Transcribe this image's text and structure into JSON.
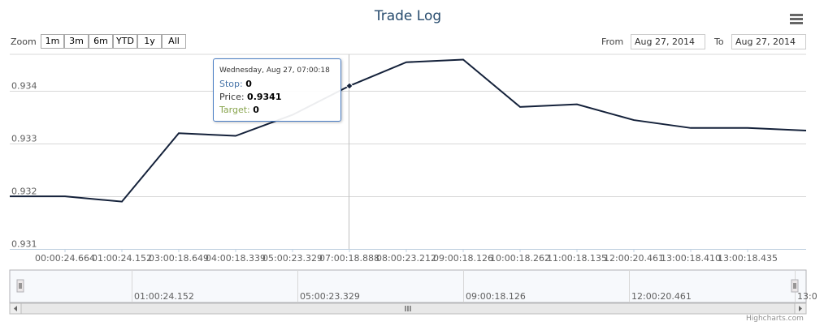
{
  "chart_title": "Trade Log",
  "range_selector": {
    "zoom_label": "Zoom",
    "buttons": [
      "1m",
      "3m",
      "6m",
      "YTD",
      "1y",
      "All"
    ],
    "from_label": "From",
    "from_value": "Aug 27, 2014",
    "to_label": "To",
    "to_value": "Aug 27, 2014"
  },
  "tooltip": {
    "date": "Wednesday, Aug 27, 07:00:18",
    "stop_label": "Stop:",
    "stop_value": "0",
    "price_label": "Price:",
    "price_value": "0.9341",
    "target_label": "Target:",
    "target_value": "0",
    "stop_color": "#4572a7",
    "target_color": "#89a54e"
  },
  "credits": "Highcharts.com",
  "chart_data": {
    "type": "line",
    "title": "Trade Log",
    "x": [
      "00:00:24.664",
      "01:00:24.152",
      "03:00:18.649",
      "04:00:18.339",
      "05:00:23.329",
      "07:00:18.888",
      "08:00:23.212",
      "09:00:18.126",
      "10:00:18.262",
      "11:00:18.135",
      "12:00:20.461",
      "13:00:18.410",
      "13:00:18.435"
    ],
    "values": [
      0.932,
      0.9319,
      0.9332,
      0.93315,
      0.93355,
      0.9341,
      0.93455,
      0.9346,
      0.9337,
      0.93375,
      0.93345,
      0.9333,
      0.9333
    ],
    "x_leading_value": 0.932,
    "x_trailing_value": 0.93325,
    "ylim": [
      0.931,
      0.9347
    ],
    "y_ticks": [
      "0.931",
      "0.932",
      "0.933",
      "0.934"
    ],
    "line_color": "#14213a",
    "grid": true,
    "highlighted_point_index": 5,
    "navigator_labels": [
      "01:00:24.152",
      "05:00:23.329",
      "09:00:18.126",
      "12:00:20.461",
      "13:0"
    ]
  }
}
